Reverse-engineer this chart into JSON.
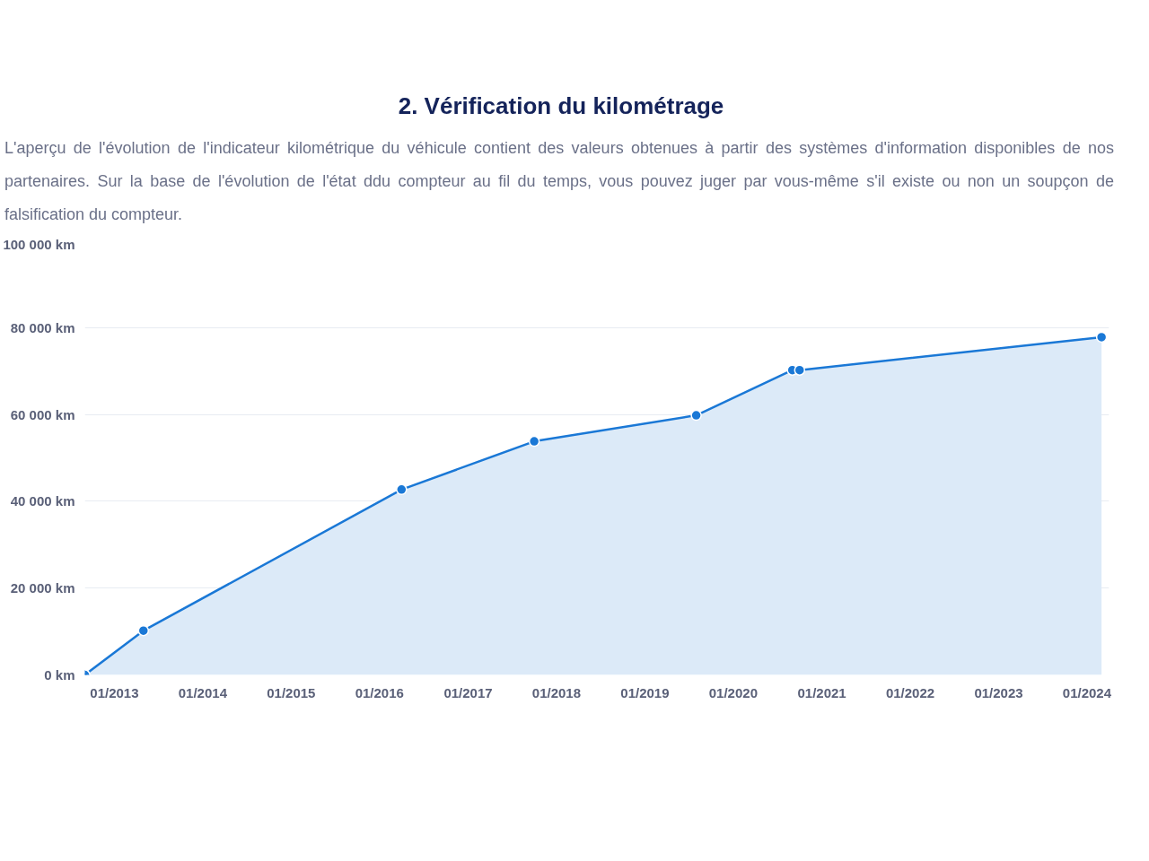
{
  "chart_data": {
    "type": "area",
    "title": "2. Vérification du kilométrage",
    "subtitle": "L'aperçu de l'évolution de l'indicateur kilométrique du véhicule contient des valeurs obtenues à partir des systèmes d'information disponibles de nos partenaires. Sur la base de l'évolution de l'état ddu compteur au fil du temps, vous pouvez juger par vous-même s'il existe ou non un soupçon de falsification du compteur.",
    "x": [
      "2012-09",
      "2013-05",
      "2016-04",
      "2017-10",
      "2019-08",
      "2020-09",
      "2020-10",
      "2024-03"
    ],
    "series": [
      {
        "color": "#1a78d6",
        "values": [
          0,
          10200,
          42700,
          53800,
          59800,
          70200,
          70200,
          77800
        ]
      }
    ],
    "xlim": [
      "2012-09",
      "2024-04"
    ],
    "xticks": [
      {
        "value": "2013-01",
        "label": "01/2013"
      },
      {
        "value": "2014-01",
        "label": "01/2014"
      },
      {
        "value": "2015-01",
        "label": "01/2015"
      },
      {
        "value": "2016-01",
        "label": "01/2016"
      },
      {
        "value": "2017-01",
        "label": "01/2017"
      },
      {
        "value": "2018-01",
        "label": "01/2018"
      },
      {
        "value": "2019-01",
        "label": "01/2019"
      },
      {
        "value": "2020-01",
        "label": "01/2020"
      },
      {
        "value": "2021-01",
        "label": "01/2021"
      },
      {
        "value": "2022-01",
        "label": "01/2022"
      },
      {
        "value": "2023-01",
        "label": "01/2023"
      },
      {
        "value": "2024-01",
        "label": "01/2024"
      }
    ],
    "ylim": [
      0,
      100000
    ],
    "yticks": [
      {
        "value": 0,
        "label": "0 km"
      },
      {
        "value": 20000,
        "label": "20 000 km"
      },
      {
        "value": 40000,
        "label": "40 000 km"
      },
      {
        "value": 60000,
        "label": "60 000 km"
      },
      {
        "value": 80000,
        "label": "80 000 km"
      },
      {
        "value": 100000,
        "label": "100 000 km"
      }
    ],
    "grid": "y",
    "marker": "circle",
    "line_style": "solid"
  }
}
